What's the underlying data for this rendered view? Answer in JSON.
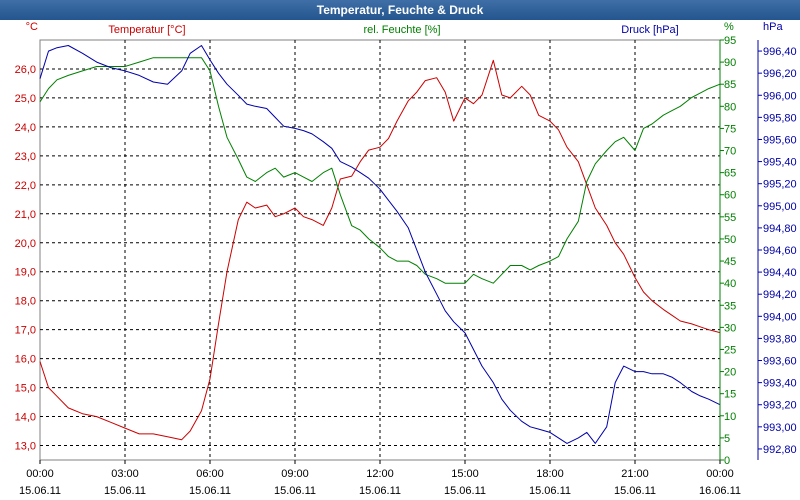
{
  "window": {
    "title": "Temperatur, Feuchte & Druck"
  },
  "colors": {
    "temperature": "#cc0000",
    "humidity": "#008000",
    "pressure": "#0000aa",
    "grid": "#000000"
  },
  "chart_data": {
    "type": "line",
    "title": "Temperatur, Feuchte & Druck",
    "x_ticks": [
      {
        "time": "00:00",
        "date": "15.06.11"
      },
      {
        "time": "03:00",
        "date": "15.06.11"
      },
      {
        "time": "06:00",
        "date": "15.06.11"
      },
      {
        "time": "09:00",
        "date": "15.06.11"
      },
      {
        "time": "12:00",
        "date": "15.06.11"
      },
      {
        "time": "15:00",
        "date": "15.06.11"
      },
      {
        "time": "18:00",
        "date": "15.06.11"
      },
      {
        "time": "21:00",
        "date": "15.06.11"
      },
      {
        "time": "00:00",
        "date": "16.06.11"
      }
    ],
    "x_range_hours": [
      0,
      24
    ],
    "axes": {
      "temperature": {
        "label": "Temperatur [°C]",
        "unit_label": "°C",
        "range": [
          12.5,
          27.0
        ],
        "ticks": [
          "26,0",
          "25,0",
          "24,0",
          "23,0",
          "22,0",
          "21,0",
          "20,0",
          "19,0",
          "18,0",
          "17,0",
          "16,0",
          "15,0",
          "14,0",
          "13,0"
        ]
      },
      "humidity": {
        "label": "rel. Feuchte [%]",
        "unit_label": "%",
        "range": [
          0,
          95
        ],
        "ticks": [
          "95",
          "90",
          "85",
          "80",
          "75",
          "70",
          "65",
          "60",
          "55",
          "50",
          "45",
          "40",
          "35",
          "30",
          "25",
          "20",
          "15",
          "10",
          "5",
          "0"
        ]
      },
      "pressure": {
        "label": "Druck [hPa]",
        "unit_label": "hPa",
        "range": [
          992.7,
          996.5
        ],
        "ticks": [
          "996,40",
          "996,20",
          "996,00",
          "995,80",
          "995,60",
          "995,40",
          "995,20",
          "995,00",
          "994,80",
          "994,60",
          "994,40",
          "994,20",
          "994,00",
          "993,80",
          "993,60",
          "993,40",
          "993,20",
          "993,00",
          "992,80"
        ]
      }
    },
    "series": [
      {
        "name": "Temperatur",
        "axis": "temperature",
        "x": [
          0,
          0.3,
          0.6,
          1,
          1.5,
          2,
          2.5,
          3,
          3.5,
          4,
          4.5,
          5,
          5.3,
          5.7,
          6,
          6.3,
          6.6,
          7,
          7.3,
          7.6,
          8,
          8.3,
          8.6,
          9,
          9.3,
          9.6,
          10,
          10.3,
          10.6,
          11,
          11.3,
          11.6,
          12,
          12.3,
          12.6,
          13,
          13.3,
          13.6,
          14,
          14.3,
          14.6,
          15,
          15.3,
          15.6,
          16,
          16.3,
          16.6,
          17,
          17.3,
          17.6,
          18,
          18.3,
          18.6,
          19,
          19.3,
          19.6,
          20,
          20.3,
          20.6,
          21,
          21.3,
          21.6,
          22,
          22.3,
          22.6,
          23,
          23.3,
          23.6,
          24
        ],
        "values": [
          15.9,
          15.0,
          14.7,
          14.3,
          14.1,
          14.0,
          13.8,
          13.6,
          13.4,
          13.4,
          13.3,
          13.2,
          13.5,
          14.2,
          15.3,
          17.2,
          19.0,
          20.8,
          21.4,
          21.2,
          21.3,
          20.9,
          21.0,
          21.2,
          20.9,
          20.8,
          20.6,
          21.2,
          22.2,
          22.3,
          22.8,
          23.2,
          23.3,
          23.6,
          24.2,
          24.9,
          25.2,
          25.6,
          25.7,
          25.2,
          24.2,
          25.0,
          24.8,
          25.1,
          26.3,
          25.1,
          25.0,
          25.4,
          25.1,
          24.4,
          24.2,
          23.9,
          23.3,
          22.8,
          22.0,
          21.2,
          20.6,
          20.0,
          19.6,
          18.8,
          18.3,
          18.0,
          17.7,
          17.5,
          17.3,
          17.2,
          17.1,
          17.0,
          16.9
        ]
      },
      {
        "name": "rel. Feuchte",
        "axis": "humidity",
        "x": [
          0,
          0.3,
          0.6,
          1,
          1.5,
          2,
          2.5,
          3,
          3.5,
          4,
          4.5,
          5,
          5.3,
          5.7,
          6,
          6.3,
          6.6,
          7,
          7.3,
          7.6,
          8,
          8.3,
          8.6,
          9,
          9.3,
          9.6,
          10,
          10.3,
          10.6,
          11,
          11.3,
          11.6,
          12,
          12.3,
          12.6,
          13,
          13.3,
          13.6,
          14,
          14.3,
          14.6,
          15,
          15.3,
          15.6,
          16,
          16.3,
          16.6,
          17,
          17.3,
          17.6,
          18,
          18.3,
          18.6,
          19,
          19.3,
          19.6,
          20,
          20.3,
          20.6,
          21,
          21.3,
          21.6,
          22,
          22.3,
          22.6,
          23,
          23.3,
          23.6,
          24
        ],
        "values": [
          81,
          84,
          86,
          87,
          88,
          89,
          89,
          89,
          90,
          91,
          91,
          91,
          91,
          91,
          88,
          80,
          73,
          68,
          64,
          63,
          65,
          66,
          64,
          65,
          64,
          63,
          65,
          66,
          60,
          53,
          52,
          50,
          48,
          46,
          45,
          45,
          44,
          42,
          41,
          40,
          40,
          40,
          42,
          41,
          40,
          42,
          44,
          44,
          43,
          44,
          45,
          46,
          50,
          54,
          63,
          67,
          70,
          72,
          73,
          70,
          75,
          76,
          78,
          79,
          80,
          82,
          83,
          84,
          85
        ]
      },
      {
        "name": "Druck",
        "axis": "pressure",
        "x": [
          0,
          0.3,
          0.6,
          1,
          1.5,
          2,
          2.5,
          3,
          3.5,
          4,
          4.5,
          5,
          5.3,
          5.7,
          6,
          6.3,
          6.6,
          7,
          7.3,
          7.6,
          8,
          8.3,
          8.6,
          9,
          9.3,
          9.6,
          10,
          10.3,
          10.6,
          11,
          11.3,
          11.6,
          12,
          12.3,
          12.6,
          13,
          13.3,
          13.6,
          14,
          14.3,
          14.6,
          15,
          15.3,
          15.6,
          16,
          16.3,
          16.6,
          17,
          17.3,
          17.6,
          18,
          18.3,
          18.6,
          19,
          19.3,
          19.6,
          20,
          20.3,
          20.6,
          21,
          21.3,
          21.6,
          22,
          22.3,
          22.6,
          23,
          23.3,
          23.6,
          24
        ],
        "values": [
          996.15,
          996.4,
          996.43,
          996.45,
          996.38,
          996.3,
          996.25,
          996.22,
          996.18,
          996.12,
          996.1,
          996.22,
          996.38,
          996.45,
          996.32,
          996.2,
          996.1,
          996.0,
          995.92,
          995.9,
          995.88,
          995.8,
          995.72,
          995.7,
          995.68,
          995.65,
          995.58,
          995.52,
          995.4,
          995.35,
          995.3,
          995.25,
          995.15,
          995.05,
          994.95,
          994.8,
          994.6,
          994.4,
          994.2,
          994.05,
          993.95,
          993.85,
          993.7,
          993.55,
          993.4,
          993.25,
          993.15,
          993.05,
          993.0,
          992.98,
          992.95,
          992.9,
          992.85,
          992.9,
          992.95,
          992.85,
          993.0,
          993.4,
          993.55,
          993.5,
          993.5,
          993.48,
          993.48,
          993.45,
          993.4,
          993.32,
          993.28,
          993.25,
          993.2
        ]
      }
    ]
  }
}
